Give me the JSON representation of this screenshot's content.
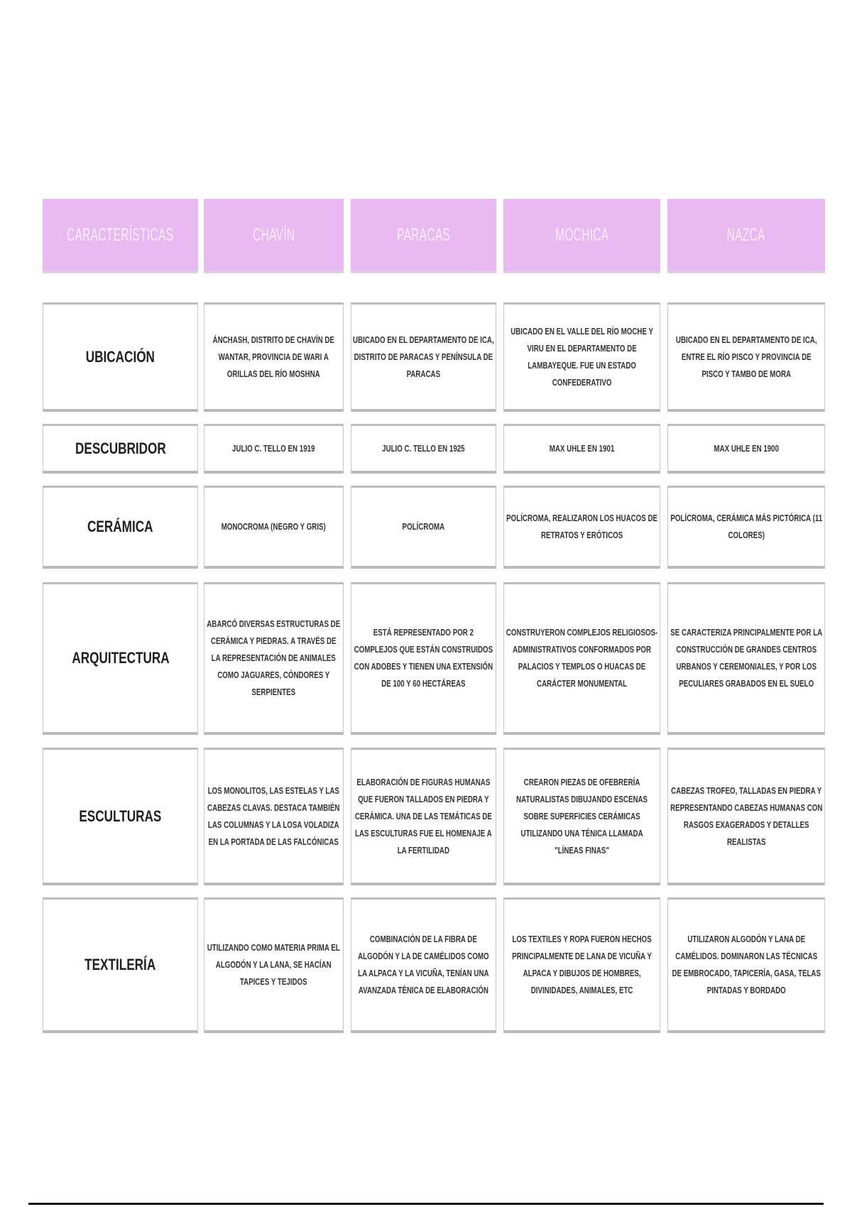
{
  "table": {
    "headers": [
      "CARACTERÍSTICAS",
      "CHAVÍN",
      "PARACAS",
      "MOCHICA",
      "NAZCA"
    ],
    "header_color": "#e8baf1",
    "rows": [
      {
        "label": "UBICACIÓN",
        "values": [
          "ÁNCHASH, DISTRITO DE CHAVÍN DE WANTAR, PROVINCIA DE WARI A ORILLAS DEL RÍO MOSHNA",
          "UBICADO EN EL DEPARTAMENTO DE ICA, DISTRITO DE PARACAS Y PENÍNSULA DE PARACAS",
          "UBICADO EN EL VALLE DEL RÍO MOCHE Y VIRU EN EL DEPARTAMENTO DE LAMBAYEQUE. FUE UN ESTADO CONFEDERATIVO",
          "UBICADO EN EL DEPARTAMENTO DE ICA, ENTRE EL RÍO PISCO Y PROVINCIA DE PISCO Y TAMBO DE MORA"
        ]
      },
      {
        "label": "DESCUBRIDOR",
        "values": [
          "JULIO C. TELLO EN 1919",
          "JULIO C. TELLO EN 1925",
          "MAX UHLE EN 1901",
          "MAX UHLE EN 1900"
        ]
      },
      {
        "label": "CERÁMICA",
        "values": [
          "MONOCROMA (NEGRO Y GRIS)",
          "POLÍCROMA",
          "POLÍCROMA, REALIZARON LOS HUACOS DE RETRATOS Y ERÓTICOS",
          "POLÍCROMA, CERÁMICA MÁS PICTÓRICA (11 COLORES)"
        ]
      },
      {
        "label": "ARQUITECTURA",
        "values": [
          "ABARCÓ DIVERSAS ESTRUCTURAS DE CERÁMICA Y PIEDRAS. A TRAVÉS DE LA REPRESENTACIÓN DE ANIMALES COMO JAGUARES, CÓNDORES Y SERPIENTES",
          "ESTÁ REPRESENTADO POR 2 COMPLEJOS QUE ESTÁN CONSTRUIDOS CON ADOBES Y TIENEN UNA EXTENSIÓN DE 100 Y 60 HECTÁREAS",
          "CONSTRUYERON COMPLEJOS RELIGIOSOS-ADMINISTRATIVOS CONFORMADOS POR PALACIOS Y TEMPLOS O HUACAS DE CARÁCTER MONUMENTAL",
          "SE CARACTERIZA PRINCIPALMENTE POR LA CONSTRUCCIÓN DE GRANDES CENTROS URBANOS Y CEREMONIALES, Y POR LOS PECULIARES GRABADOS EN EL SUELO"
        ]
      },
      {
        "label": "ESCULTURAS",
        "values": [
          "LOS MONOLITOS, LAS ESTELAS Y LAS CABEZAS CLAVAS. DESTACA TAMBIÉN LAS COLUMNAS Y LA LOSA VOLADIZA EN LA PORTADA DE LAS FALCÓNICAS",
          "ELABORACIÓN DE FIGURAS HUMANAS QUE FUERON TALLADOS EN PIEDRA Y CERÁMICA. UNA DE LAS TEMÁTICAS DE LAS ESCULTURAS FUE EL HOMENAJE A LA FERTILIDAD",
          "CREARON PIEZAS DE OFEBRERÍA NATURALISTAS DIBUJANDO ESCENAS SOBRE SUPERFICIES CERÁMICAS UTILIZANDO UNA TÉNICA LLAMADA \"LÍNEAS FINAS\"",
          "CABEZAS TROFEO, TALLADAS EN PIEDRA Y REPRESENTANDO CABEZAS HUMANAS CON RASGOS EXAGERADOS Y DETALLES REALISTAS"
        ]
      },
      {
        "label": "TEXTILERÍA",
        "values": [
          "UTILIZANDO COMO MATERIA PRIMA EL ALGODÓN Y LA LANA, SE HACÍAN TAPICES Y TEJIDOS",
          "COMBINACIÓN DE LA FIBRA DE ALGODÓN Y LA DE CAMÉLIDOS COMO LA ALPACA Y LA VICUÑA, TENÍAN UNA AVANZADA TÉNICA DE ELABORACIÓN",
          "LOS TEXTILES Y ROPA FUERON HECHOS PRINCIPALMENTE DE LANA DE VICUÑA Y ALPACA Y DIBUJOS DE HOMBRES, DIVINIDADES, ANIMALES, ETC",
          "UTILIZARON ALGODÓN Y LANA DE CAMÉLIDOS. DOMINARON LAS TÉCNICAS DE EMBROCADO, TAPICERÍA, GASA, TELAS PINTADAS Y BORDADO"
        ]
      }
    ]
  }
}
